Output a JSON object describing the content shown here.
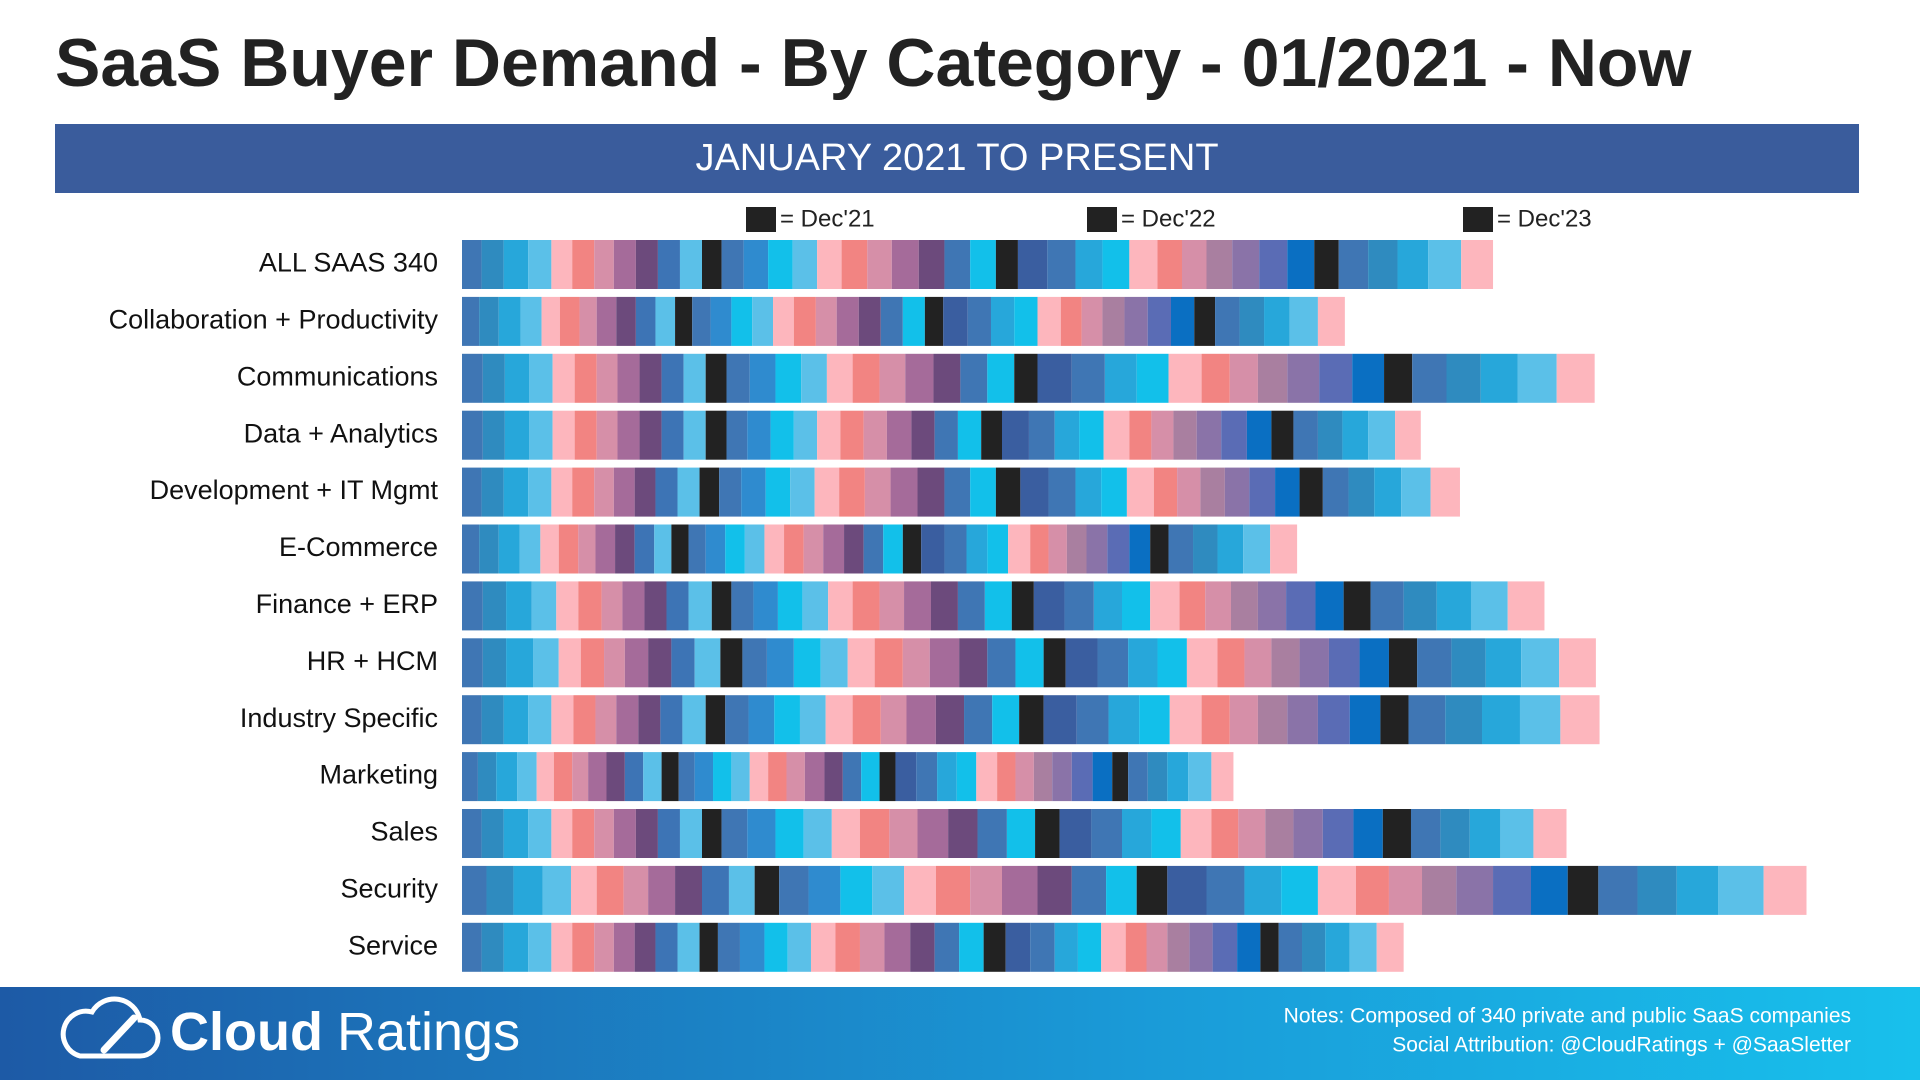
{
  "chart_data": {
    "type": "stacked-bar-horizontal",
    "title": "SaaS Buyer Demand - By Category - 01/2021 - Now",
    "subtitle": "JANUARY 2021 TO PRESENT",
    "legend": [
      {
        "label": "= Dec'21",
        "color": "#222222"
      },
      {
        "label": "= Dec'22",
        "color": "#222222"
      },
      {
        "label": "= Dec'23",
        "color": "#222222"
      }
    ],
    "categories": [
      "ALL SAAS 340",
      "Collaboration + Productivity",
      "Communications",
      "Data + Analytics",
      "Development + IT Mgmt",
      "E-Commerce",
      "Finance + ERP",
      "HR + HCM",
      "Industry Specific",
      "Marketing",
      "Sales",
      "Security",
      "Service"
    ],
    "colors": [
      "#3f76b4",
      "#2f8bbf",
      "#27a7da",
      "#5bc0e8",
      "#fdb6bd",
      "#f28482",
      "#d68fa8",
      "#a56b9a",
      "#6c4a7c",
      "#3d74b5",
      "#5bc0e8",
      "#222222",
      "#3f76b4",
      "#2f8bcf",
      "#12c0ea",
      "#5bc0e8",
      "#fdb6bd",
      "#f28482",
      "#d68fa8",
      "#a56b9a",
      "#6c4a7c",
      "#3f76b4",
      "#12c0ea",
      "#222222",
      "#3a5ea0",
      "#3f76b4",
      "#27a7da",
      "#12c0ea",
      "#fdb6bd",
      "#f28482",
      "#d68fa8",
      "#a97fa0",
      "#8a73a8",
      "#5a6cb5",
      "#0a6fc2",
      "#222222",
      "#3f76b4",
      "#2f8bbf",
      "#27a7da",
      "#5bc0e8",
      "#fdb6bd"
    ],
    "segments": [
      [
        16,
        18,
        20,
        19,
        17,
        18,
        16,
        18,
        18,
        18,
        18,
        16,
        18,
        20,
        20,
        20,
        20,
        21,
        20,
        22,
        21,
        21,
        21,
        18,
        24,
        23,
        22,
        22,
        23,
        20,
        20,
        21,
        22,
        23,
        22,
        20,
        24,
        24,
        25,
        27,
        26
      ],
      [
        14,
        16,
        18,
        17,
        15,
        16,
        14,
        16,
        16,
        16,
        16,
        14,
        15,
        17,
        17,
        17,
        17,
        18,
        17,
        18,
        18,
        18,
        18,
        15,
        20,
        19,
        19,
        19,
        19,
        17,
        17,
        18,
        19,
        19,
        19,
        17,
        20,
        20,
        21,
        23,
        22
      ],
      [
        17,
        18,
        20,
        19,
        18,
        18,
        17,
        18,
        18,
        18,
        18,
        17,
        19,
        21,
        21,
        21,
        21,
        22,
        21,
        23,
        22,
        22,
        22,
        19,
        28,
        27,
        26,
        26,
        27,
        23,
        23,
        24,
        26,
        27,
        26,
        23,
        28,
        28,
        30,
        32,
        31
      ],
      [
        17,
        18,
        20,
        19,
        18,
        18,
        17,
        18,
        18,
        18,
        18,
        17,
        17,
        19,
        19,
        19,
        19,
        19,
        19,
        20,
        19,
        19,
        19,
        17,
        22,
        21,
        20,
        20,
        21,
        18,
        18,
        19,
        20,
        21,
        20,
        18,
        20,
        20,
        21,
        22,
        21
      ],
      [
        16,
        18,
        20,
        19,
        17,
        18,
        16,
        17,
        17,
        18,
        18,
        16,
        18,
        20,
        20,
        20,
        20,
        21,
        21,
        22,
        22,
        21,
        21,
        20,
        23,
        22,
        21,
        21,
        22,
        19,
        19,
        20,
        20,
        21,
        20,
        19,
        21,
        21,
        22,
        24,
        24
      ],
      [
        14,
        16,
        17,
        17,
        15,
        16,
        14,
        16,
        16,
        16,
        14,
        14,
        14,
        16,
        16,
        16,
        16,
        16,
        16,
        17,
        16,
        16,
        16,
        15,
        19,
        18,
        17,
        17,
        18,
        15,
        15,
        16,
        17,
        18,
        17,
        15,
        20,
        20,
        21,
        22,
        22
      ],
      [
        17,
        19,
        21,
        20,
        18,
        19,
        17,
        18,
        18,
        18,
        19,
        16,
        18,
        20,
        20,
        21,
        20,
        22,
        20,
        22,
        22,
        22,
        22,
        18,
        25,
        24,
        23,
        23,
        24,
        21,
        21,
        22,
        23,
        24,
        23,
        22,
        27,
        27,
        28,
        30,
        30
      ],
      [
        17,
        19,
        22,
        21,
        18,
        19,
        17,
        19,
        19,
        19,
        21,
        18,
        20,
        22,
        22,
        22,
        22,
        23,
        22,
        24,
        23,
        23,
        23,
        18,
        26,
        25,
        24,
        24,
        25,
        22,
        22,
        23,
        24,
        25,
        24,
        23,
        28,
        28,
        29,
        31,
        30
      ],
      [
        16,
        18,
        20,
        19,
        18,
        18,
        17,
        18,
        18,
        18,
        19,
        16,
        19,
        21,
        21,
        21,
        22,
        23,
        21,
        24,
        23,
        23,
        22,
        20,
        27,
        26,
        25,
        25,
        26,
        23,
        23,
        24,
        25,
        26,
        25,
        23,
        30,
        30,
        31,
        33,
        32
      ],
      [
        13,
        15,
        17,
        16,
        14,
        15,
        13,
        15,
        15,
        15,
        15,
        14,
        13,
        15,
        15,
        15,
        15,
        15,
        15,
        16,
        15,
        15,
        15,
        13,
        17,
        17,
        16,
        16,
        17,
        15,
        15,
        15,
        16,
        17,
        16,
        13,
        16,
        16,
        17,
        19,
        18
      ],
      [
        16,
        18,
        20,
        19,
        17,
        18,
        16,
        18,
        18,
        18,
        18,
        16,
        21,
        23,
        23,
        23,
        23,
        24,
        23,
        25,
        24,
        24,
        23,
        20,
        26,
        25,
        24,
        24,
        25,
        22,
        22,
        23,
        24,
        25,
        24,
        23,
        24,
        24,
        25,
        27,
        27
      ],
      [
        20,
        22,
        24,
        23,
        21,
        22,
        20,
        22,
        22,
        22,
        21,
        20,
        24,
        26,
        26,
        26,
        26,
        28,
        26,
        29,
        28,
        28,
        25,
        25,
        32,
        31,
        30,
        30,
        31,
        27,
        27,
        28,
        30,
        31,
        30,
        25,
        32,
        32,
        34,
        37,
        35
      ],
      [
        16,
        18,
        20,
        19,
        17,
        18,
        16,
        17,
        17,
        18,
        18,
        15,
        18,
        20,
        19,
        19,
        20,
        20,
        20,
        21,
        20,
        20,
        20,
        18,
        20,
        20,
        19,
        19,
        20,
        17,
        17,
        18,
        19,
        20,
        19,
        15,
        19,
        19,
        20,
        22,
        22
      ]
    ],
    "brand": {
      "name_bold": "Cloud",
      "name_light": "Ratings"
    },
    "notes": [
      "Notes: Composed of 340 private and public SaaS companies",
      "Social Attribution: @CloudRatings + @SaaSletter"
    ]
  }
}
